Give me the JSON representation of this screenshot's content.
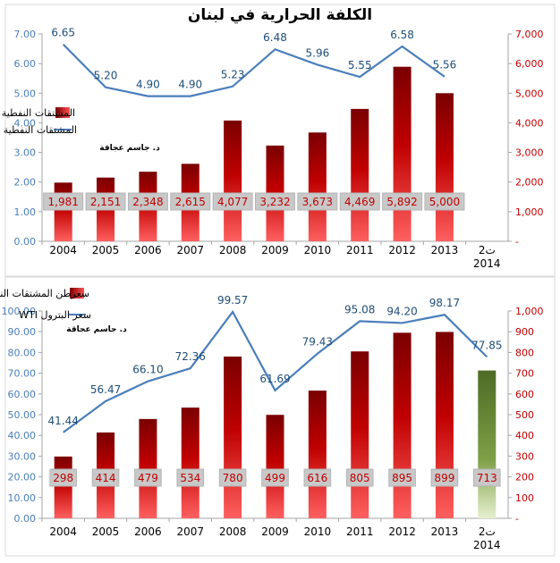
{
  "chart_data": [
    {
      "type": "bar",
      "title": "الكلفة الحرارية في لبنان",
      "annotation": "د. جاسم عجاقة",
      "categories": [
        "2004",
        "2005",
        "2006",
        "2007",
        "2008",
        "2009",
        "2010",
        "2011",
        "2012",
        "2013",
        "ت2 2014"
      ],
      "series": [
        {
          "name": "المشتقات النفطية (مليون دولار)",
          "kind": "bar",
          "axis": "right",
          "color": "#c00000",
          "values": [
            1981,
            2151,
            2348,
            2615,
            4077,
            3232,
            3673,
            4469,
            5892,
            5000,
            null
          ],
          "labels": [
            "1,981",
            "2,151",
            "2,348",
            "2,615",
            "4,077",
            "3,232",
            "3,673",
            "4,469",
            "5,892",
            "5,000",
            ""
          ]
        },
        {
          "name": "المشتقات النفطية (مليون طن)",
          "kind": "line",
          "axis": "left",
          "color": "#4a7ebb",
          "values": [
            6.65,
            5.2,
            4.9,
            4.9,
            5.23,
            6.48,
            5.96,
            5.55,
            6.58,
            5.56,
            null
          ],
          "labels": [
            "6.65",
            "5.20",
            "4.90",
            "4.90",
            "5.23",
            "6.48",
            "5.96",
            "5.55",
            "6.58",
            "5.56",
            ""
          ]
        }
      ],
      "y_left": {
        "min": 0,
        "max": 7,
        "ticks": [
          "0.00",
          "1.00",
          "2.00",
          "3.00",
          "4.00",
          "5.00",
          "6.00",
          "7.00"
        ],
        "color": "#4a7ebb"
      },
      "y_right": {
        "min": 0,
        "max": 7000,
        "ticks": [
          "-",
          "1,000",
          "2,000",
          "3,000",
          "4,000",
          "5,000",
          "6,000",
          "7,000"
        ],
        "color": "#c00000"
      },
      "grid": false,
      "legend_position": "left"
    },
    {
      "type": "bar",
      "title": "",
      "annotation": "د. جاسم عجاقة",
      "categories": [
        "2004",
        "2005",
        "2006",
        "2007",
        "2008",
        "2009",
        "2010",
        "2011",
        "2012",
        "2013",
        "ت2 2014"
      ],
      "series": [
        {
          "name": "سعرطن المشتقات النفطية",
          "kind": "bar",
          "axis": "right",
          "color": "#c00000",
          "highlight_color": "#5f7f2f",
          "values": [
            298,
            414,
            479,
            534,
            780,
            499,
            616,
            805,
            895,
            899,
            713
          ],
          "labels": [
            "298",
            "414",
            "479",
            "534",
            "780",
            "499",
            "616",
            "805",
            "895",
            "899",
            "713"
          ]
        },
        {
          "name": "سعر البترول WTI",
          "kind": "line",
          "axis": "left",
          "color": "#4a7ebb",
          "values": [
            41.44,
            56.47,
            66.1,
            72.36,
            99.57,
            61.69,
            79.43,
            95.08,
            94.2,
            98.17,
            77.85
          ],
          "labels": [
            "41.44",
            "56.47",
            "66.10",
            "72.36",
            "99.57",
            "61.69",
            "79.43",
            "95.08",
            "94.20",
            "98.17",
            "77.85"
          ]
        }
      ],
      "y_left": {
        "min": 0,
        "max": 100,
        "ticks": [
          "0.00",
          "10.00",
          "20.00",
          "30.00",
          "40.00",
          "50.00",
          "60.00",
          "70.00",
          "80.00",
          "90.00",
          "100.00"
        ],
        "color": "#4a7ebb"
      },
      "y_right": {
        "min": 0,
        "max": 1000,
        "ticks": [
          "-",
          "100",
          "200",
          "300",
          "400",
          "500",
          "600",
          "700",
          "800",
          "900",
          "1,000"
        ],
        "color": "#c00000"
      },
      "grid": false,
      "legend_position": "top-left"
    }
  ]
}
